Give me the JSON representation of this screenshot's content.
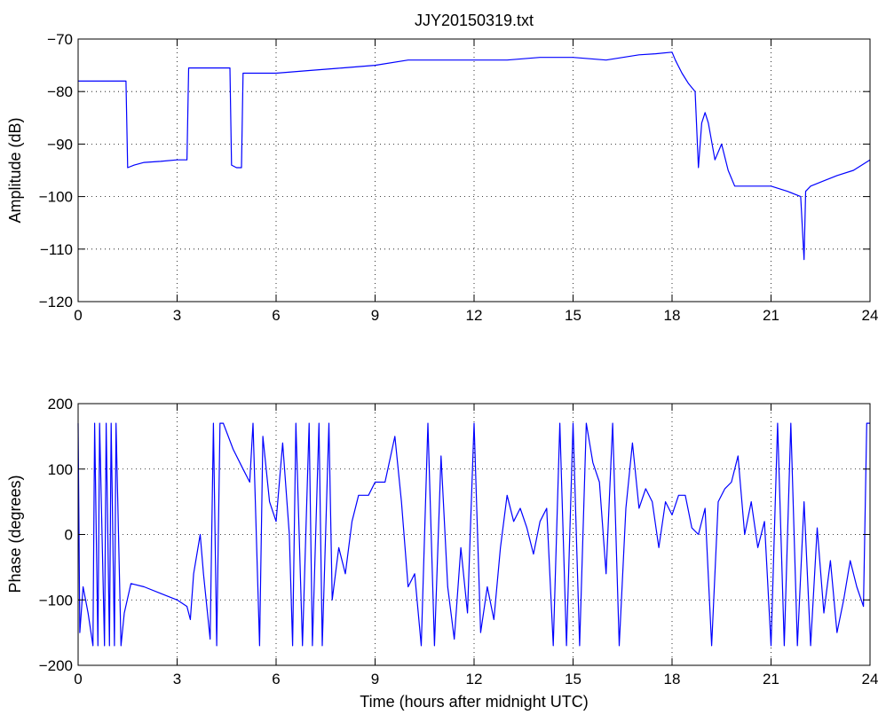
{
  "chart_data": [
    {
      "type": "line",
      "title": "JJY20150319.txt",
      "xlabel": "",
      "ylabel": "Amplitude (dB)",
      "xlim": [
        0,
        24
      ],
      "ylim": [
        -120,
        -70
      ],
      "xticks": [
        "0",
        "3",
        "6",
        "9",
        "12",
        "15",
        "18",
        "21",
        "24"
      ],
      "yticks": [
        "−70",
        "−80",
        "−90",
        "−100",
        "−110",
        "−120"
      ],
      "grid": true,
      "line_color": "#0000ff",
      "series": [
        {
          "x": [
            0,
            0.4,
            0.8,
            1.2,
            1.45,
            1.5,
            1.7,
            2.0,
            2.5,
            3.0,
            3.3,
            3.35,
            3.6,
            4.0,
            4.4,
            4.6,
            4.65,
            4.8,
            4.95,
            5.0,
            5.5,
            6.0,
            7.0,
            8.0,
            9.0,
            10.0,
            11.0,
            12.0,
            13.0,
            14.0,
            15.0,
            16.0,
            17.0,
            17.5,
            18.0,
            18.1,
            18.3,
            18.5,
            18.7,
            18.8,
            18.9,
            19.0,
            19.1,
            19.3,
            19.5,
            19.7,
            19.9,
            20.2,
            20.6,
            21.0,
            21.5,
            21.9,
            22.0,
            22.05,
            22.2,
            22.6,
            23.0,
            23.5,
            24.0
          ],
          "values": [
            -78,
            -78,
            -78,
            -78,
            -78,
            -94.5,
            -94,
            -93.5,
            -93.3,
            -93,
            -93,
            -75.5,
            -75.5,
            -75.5,
            -75.5,
            -75.5,
            -94,
            -94.5,
            -94.5,
            -76.5,
            -76.5,
            -76.5,
            -76,
            -75.5,
            -75,
            -74,
            -74,
            -74,
            -74,
            -73.5,
            -73.5,
            -74,
            -73,
            -72.8,
            -72.5,
            -74,
            -76.5,
            -78.5,
            -80,
            -94.5,
            -86,
            -84,
            -86,
            -93,
            -90,
            -95,
            -98,
            -98,
            -98,
            -98,
            -99,
            -100,
            -112,
            -99,
            -98,
            -97,
            -96,
            -95,
            -93
          ]
        }
      ]
    },
    {
      "type": "line",
      "title": "",
      "xlabel": "Time (hours after midnight UTC)",
      "ylabel": "Phase (degrees)",
      "xlim": [
        0,
        24
      ],
      "ylim": [
        -200,
        200
      ],
      "xticks": [
        "0",
        "3",
        "6",
        "9",
        "12",
        "15",
        "18",
        "21",
        "24"
      ],
      "yticks": [
        "200",
        "100",
        "0",
        "−100",
        "−200"
      ],
      "grid": true,
      "line_color": "#0000ff",
      "series": [
        {
          "x": [
            0,
            0.05,
            0.15,
            0.3,
            0.45,
            0.5,
            0.6,
            0.65,
            0.8,
            0.85,
            0.95,
            1.0,
            1.1,
            1.15,
            1.3,
            1.4,
            1.6,
            2.0,
            2.5,
            3.0,
            3.3,
            3.4,
            3.5,
            3.7,
            3.8,
            4.0,
            4.1,
            4.2,
            4.3,
            4.4,
            4.7,
            5.0,
            5.2,
            5.3,
            5.5,
            5.6,
            5.8,
            6.0,
            6.2,
            6.4,
            6.5,
            6.6,
            6.8,
            7.0,
            7.1,
            7.3,
            7.4,
            7.6,
            7.7,
            7.9,
            8.1,
            8.3,
            8.5,
            8.8,
            9.0,
            9.3,
            9.6,
            9.8,
            10.0,
            10.2,
            10.4,
            10.6,
            10.8,
            11.0,
            11.2,
            11.4,
            11.6,
            11.8,
            12.0,
            12.2,
            12.4,
            12.6,
            12.8,
            13.0,
            13.2,
            13.4,
            13.6,
            13.8,
            14.0,
            14.2,
            14.4,
            14.6,
            14.8,
            15.0,
            15.2,
            15.4,
            15.6,
            15.8,
            16.0,
            16.2,
            16.4,
            16.6,
            16.8,
            17.0,
            17.2,
            17.4,
            17.6,
            17.8,
            18.0,
            18.2,
            18.4,
            18.6,
            18.8,
            19.0,
            19.2,
            19.4,
            19.6,
            19.8,
            20.0,
            20.2,
            20.4,
            20.6,
            20.8,
            21.0,
            21.2,
            21.4,
            21.6,
            21.8,
            22.0,
            22.2,
            22.4,
            22.6,
            22.8,
            23.0,
            23.2,
            23.4,
            23.6,
            23.8,
            23.9,
            24.0
          ],
          "values": [
            170,
            -150,
            -80,
            -120,
            -170,
            170,
            -170,
            170,
            -170,
            170,
            -170,
            170,
            -170,
            170,
            -170,
            -120,
            -75,
            -80,
            -90,
            -100,
            -110,
            -130,
            -60,
            0,
            -60,
            -160,
            170,
            -170,
            170,
            170,
            130,
            100,
            80,
            170,
            -170,
            150,
            50,
            20,
            140,
            0,
            -170,
            170,
            -170,
            170,
            -170,
            170,
            -170,
            170,
            -100,
            -20,
            -60,
            20,
            60,
            60,
            80,
            80,
            150,
            50,
            -80,
            -60,
            -170,
            170,
            -170,
            120,
            -80,
            -160,
            -20,
            -120,
            170,
            -150,
            -80,
            -130,
            -20,
            60,
            20,
            40,
            10,
            -30,
            20,
            40,
            -170,
            170,
            -170,
            170,
            -170,
            170,
            110,
            80,
            -60,
            170,
            -170,
            40,
            140,
            40,
            70,
            50,
            -20,
            50,
            30,
            60,
            60,
            10,
            0,
            40,
            -170,
            50,
            70,
            80,
            120,
            0,
            50,
            -20,
            20,
            -170,
            170,
            -170,
            170,
            -170,
            50,
            -170,
            10,
            -120,
            -40,
            -150,
            -100,
            -40,
            -80,
            -110,
            170,
            170
          ]
        }
      ]
    }
  ]
}
